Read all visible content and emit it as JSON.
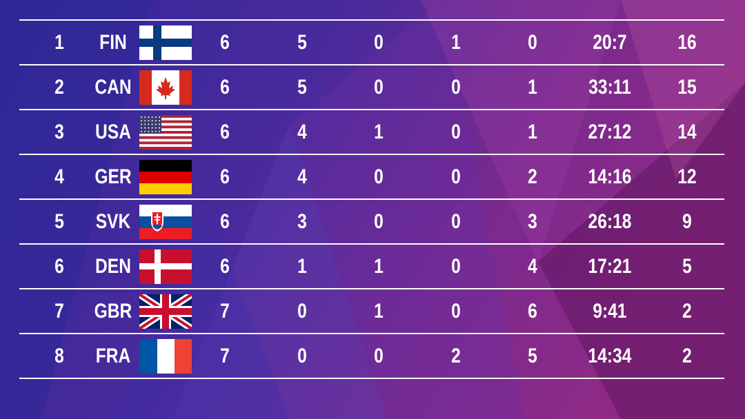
{
  "standings": [
    {
      "rank": "1",
      "team": "FIN",
      "flag": "finland-flag",
      "gp": "6",
      "w": "5",
      "otw": "0",
      "otl": "1",
      "l": "0",
      "goals": "20:7",
      "pts": "16"
    },
    {
      "rank": "2",
      "team": "CAN",
      "flag": "canada-flag",
      "gp": "6",
      "w": "5",
      "otw": "0",
      "otl": "0",
      "l": "1",
      "goals": "33:11",
      "pts": "15"
    },
    {
      "rank": "3",
      "team": "USA",
      "flag": "usa-flag",
      "gp": "6",
      "w": "4",
      "otw": "1",
      "otl": "0",
      "l": "1",
      "goals": "27:12",
      "pts": "14"
    },
    {
      "rank": "4",
      "team": "GER",
      "flag": "germany-flag",
      "gp": "6",
      "w": "4",
      "otw": "0",
      "otl": "0",
      "l": "2",
      "goals": "14:16",
      "pts": "12"
    },
    {
      "rank": "5",
      "team": "SVK",
      "flag": "slovakia-flag",
      "gp": "6",
      "w": "3",
      "otw": "0",
      "otl": "0",
      "l": "3",
      "goals": "26:18",
      "pts": "9"
    },
    {
      "rank": "6",
      "team": "DEN",
      "flag": "denmark-flag",
      "gp": "6",
      "w": "1",
      "otw": "1",
      "otl": "0",
      "l": "4",
      "goals": "17:21",
      "pts": "5"
    },
    {
      "rank": "7",
      "team": "GBR",
      "flag": "uk-flag",
      "gp": "7",
      "w": "0",
      "otw": "1",
      "otl": "0",
      "l": "6",
      "goals": "9:41",
      "pts": "2"
    },
    {
      "rank": "8",
      "team": "FRA",
      "flag": "france-flag",
      "gp": "7",
      "w": "0",
      "otw": "0",
      "otl": "2",
      "l": "5",
      "goals": "14:34",
      "pts": "2"
    }
  ],
  "colors": {
    "background_left": "#3a2a8e",
    "background_right": "#7a1f78",
    "text": "#ffffff",
    "row_line": "#ffffff"
  }
}
